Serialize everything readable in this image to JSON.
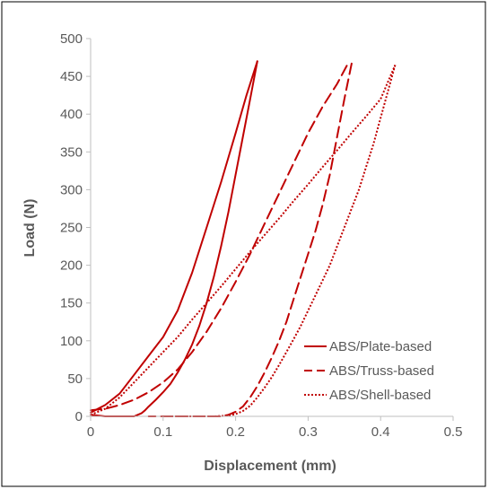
{
  "chart_data": {
    "type": "line",
    "title": "",
    "xlabel": "Displacement (mm)",
    "ylabel": "Load (N)",
    "xlim": [
      0,
      0.5
    ],
    "ylim": [
      0,
      500
    ],
    "xticks": [
      0,
      0.1,
      0.2,
      0.3,
      0.4,
      0.5
    ],
    "xtick_labels": [
      "0",
      "0.1",
      "0.2",
      "0.3",
      "0.4",
      "0.5"
    ],
    "yticks": [
      0,
      50,
      100,
      150,
      200,
      250,
      300,
      350,
      400,
      450,
      500
    ],
    "ytick_labels": [
      "0",
      "50",
      "100",
      "150",
      "200",
      "250",
      "300",
      "350",
      "400",
      "450",
      "500"
    ],
    "grid": false,
    "legend_position": "bottom-right",
    "line_color": "#c00000",
    "series": [
      {
        "name": "ABS/Plate-based",
        "style": "solid",
        "loading": {
          "x": [
            0,
            0.02,
            0.04,
            0.06,
            0.08,
            0.1,
            0.12,
            0.14,
            0.16,
            0.18,
            0.2,
            0.215,
            0.23
          ],
          "y": [
            5,
            15,
            30,
            55,
            80,
            105,
            140,
            190,
            250,
            310,
            375,
            425,
            470
          ]
        },
        "unloading": {
          "x": [
            0.23,
            0.22,
            0.21,
            0.2,
            0.19,
            0.18,
            0.17,
            0.16,
            0.15,
            0.14,
            0.13,
            0.12,
            0.11,
            0.1,
            0.09,
            0.08,
            0.075,
            0.07,
            0.065,
            0.06,
            0.05,
            0.04,
            0.02,
            0
          ],
          "y": [
            470,
            420,
            370,
            320,
            270,
            225,
            185,
            150,
            120,
            95,
            75,
            58,
            43,
            32,
            22,
            13,
            8,
            4,
            2,
            0,
            0,
            0,
            0,
            2
          ]
        }
      },
      {
        "name": "ABS/Truss-based",
        "style": "dashed",
        "loading": {
          "x": [
            0,
            0.02,
            0.04,
            0.06,
            0.08,
            0.1,
            0.12,
            0.14,
            0.16,
            0.18,
            0.2,
            0.22,
            0.24,
            0.26,
            0.28,
            0.3,
            0.32,
            0.34,
            0.355
          ],
          "y": [
            8,
            10,
            15,
            22,
            32,
            45,
            62,
            85,
            112,
            143,
            178,
            215,
            255,
            295,
            335,
            375,
            410,
            440,
            467
          ]
        },
        "unloading": {
          "x": [
            0.36,
            0.35,
            0.34,
            0.33,
            0.32,
            0.31,
            0.3,
            0.29,
            0.28,
            0.27,
            0.26,
            0.25,
            0.24,
            0.23,
            0.22,
            0.21,
            0.2,
            0.19,
            0.18,
            0.17,
            0.16,
            0.14,
            0.12,
            0.1,
            0.08
          ],
          "y": [
            467,
            420,
            370,
            320,
            280,
            245,
            215,
            185,
            155,
            125,
            100,
            78,
            58,
            40,
            25,
            13,
            6,
            2,
            0,
            0,
            0,
            0,
            0,
            0,
            0
          ]
        }
      },
      {
        "name": "ABS/Shell-based",
        "style": "dotted",
        "loading": {
          "x": [
            0,
            0.02,
            0.04,
            0.06,
            0.08,
            0.1,
            0.12,
            0.14,
            0.16,
            0.18,
            0.2,
            0.22,
            0.24,
            0.26,
            0.28,
            0.3,
            0.32,
            0.34,
            0.36,
            0.38,
            0.4,
            0.42
          ],
          "y": [
            2,
            10,
            25,
            45,
            65,
            85,
            105,
            128,
            150,
            172,
            195,
            218,
            240,
            262,
            285,
            307,
            330,
            352,
            375,
            397,
            420,
            465
          ]
        },
        "unloading": {
          "x": [
            0.42,
            0.41,
            0.4,
            0.39,
            0.38,
            0.37,
            0.36,
            0.35,
            0.34,
            0.33,
            0.32,
            0.31,
            0.3,
            0.29,
            0.28,
            0.27,
            0.26,
            0.25,
            0.24,
            0.23,
            0.22,
            0.21,
            0.2,
            0.19,
            0.17,
            0.15,
            0.12,
            0.1
          ],
          "y": [
            465,
            430,
            395,
            360,
            330,
            300,
            275,
            250,
            225,
            200,
            180,
            160,
            140,
            120,
            102,
            85,
            68,
            52,
            38,
            25,
            14,
            7,
            3,
            1,
            0,
            0,
            0,
            0
          ]
        }
      }
    ]
  }
}
